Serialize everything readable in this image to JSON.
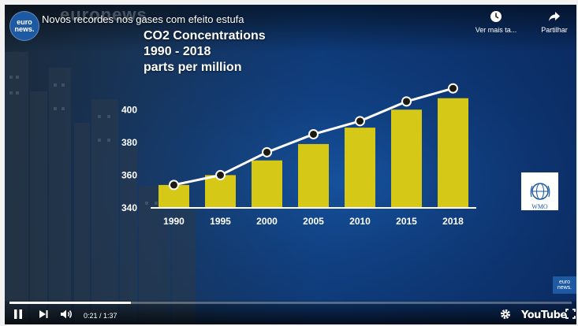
{
  "video": {
    "title": "Novos recordes nos gases com efeito estufa",
    "channel_logo_text": "euro news.",
    "watermark": "euronews"
  },
  "top_actions": [
    {
      "label": "Ver mais ta...",
      "icon": "clock-icon"
    },
    {
      "label": "Partilhar",
      "icon": "share-icon"
    }
  ],
  "controls": {
    "time_display": "0:21 / 1:37",
    "progress": 0.216,
    "youtube_label": "YouTube"
  },
  "overlay": {
    "wmo_label": "WMO",
    "corner_logo_text": "euro news."
  },
  "chart_data": {
    "type": "bar",
    "title": "CO2 Concentrations",
    "subtitle": "1990 - 2018",
    "unit_label": "parts per million",
    "categories": [
      "1990",
      "1995",
      "2000",
      "2005",
      "2010",
      "2015",
      "2018"
    ],
    "values": [
      354,
      360,
      369,
      379,
      389,
      400,
      407
    ],
    "line_values": [
      354,
      360,
      374,
      385,
      393,
      405,
      413
    ],
    "yticks": [
      340,
      360,
      380,
      400
    ],
    "ylim": [
      340,
      416
    ],
    "bar_color": "#d6c817",
    "line_color": "#ffffff",
    "grid": false,
    "legend": "none"
  }
}
